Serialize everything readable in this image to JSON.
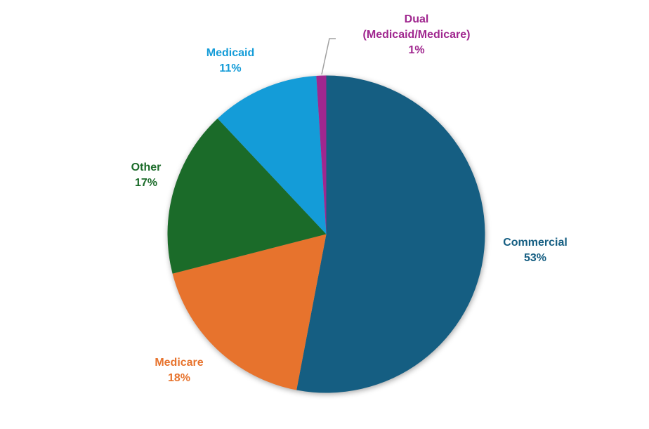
{
  "chart_data": {
    "type": "pie",
    "title": "",
    "categories": [
      "Commercial",
      "Medicare",
      "Other",
      "Medicaid",
      "Dual (Medicaid/Medicare)"
    ],
    "values": [
      53,
      18,
      17,
      11,
      1
    ],
    "unit": "%",
    "colors": [
      "#155E82",
      "#E7732D",
      "#1B6B29",
      "#149CD8",
      "#A0278F"
    ],
    "start_angle_deg": 0,
    "direction": "clockwise",
    "legend_position": "none",
    "data_labels": "category name and percent, outside slices, colored to match slice",
    "leader_line_color": "#A0A0A0",
    "background_color": "#FFFFFF"
  },
  "labels": [
    {
      "lines": [
        "Commercial"
      ],
      "pct": "53%"
    },
    {
      "lines": [
        "Medicare"
      ],
      "pct": "18%"
    },
    {
      "lines": [
        "Other"
      ],
      "pct": "17%"
    },
    {
      "lines": [
        "Medicaid"
      ],
      "pct": "11%"
    },
    {
      "lines": [
        "Dual",
        "(Medicaid/Medicare)"
      ],
      "pct": "1%"
    }
  ]
}
